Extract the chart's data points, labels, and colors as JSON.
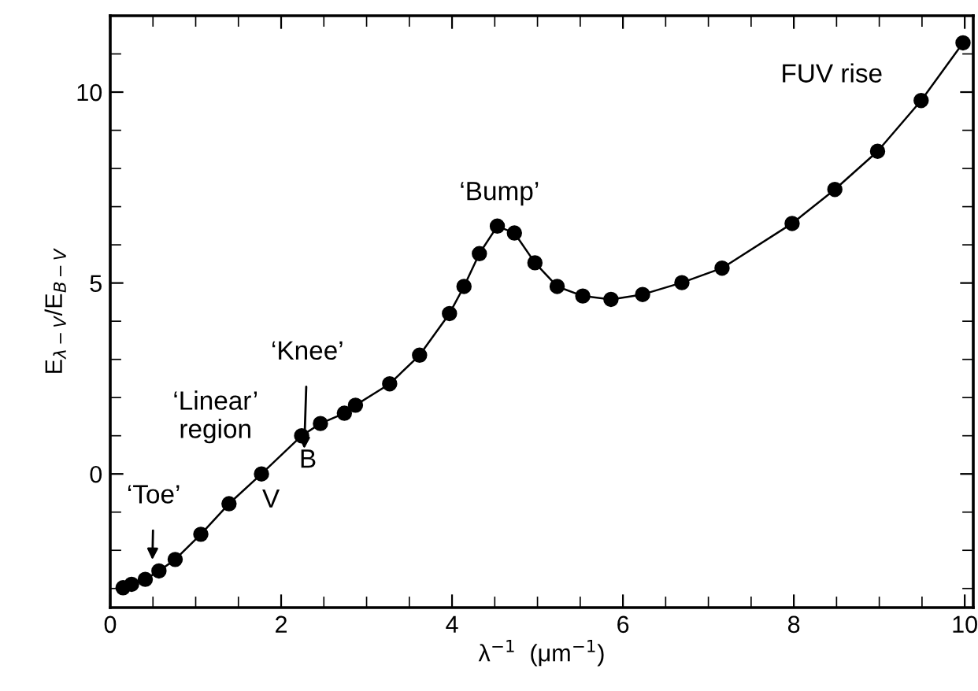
{
  "chart_data": {
    "type": "line",
    "xlabel": "λ$^{−1}$  (μm$^{−1}$)",
    "ylabel": "E$_{λ−V}$/E$_{B−V}$",
    "x": [
      0.15,
      0.25,
      0.41,
      0.57,
      0.76,
      1.06,
      1.39,
      1.77,
      2.24,
      2.46,
      2.74,
      2.87,
      3.27,
      3.62,
      3.97,
      4.14,
      4.32,
      4.53,
      4.73,
      4.97,
      5.23,
      5.53,
      5.86,
      6.23,
      6.69,
      7.16,
      7.98,
      8.48,
      8.98,
      9.49,
      9.98
    ],
    "series": [
      {
        "color": "#000000",
        "values": [
          -2.98,
          -2.89,
          -2.76,
          -2.54,
          -2.24,
          -1.58,
          -0.78,
          0.0,
          1.0,
          1.32,
          1.59,
          1.8,
          2.36,
          3.11,
          4.2,
          4.91,
          5.77,
          6.49,
          6.31,
          5.53,
          4.91,
          4.66,
          4.57,
          4.7,
          5.01,
          5.39,
          6.56,
          7.45,
          8.45,
          9.78,
          11.29
        ]
      }
    ],
    "marker": "circle",
    "line_style": "solid",
    "grid": false,
    "xlim": [
      0,
      10.1
    ],
    "ylim": [
      -3.5,
      12
    ],
    "xticks": [
      0,
      {
        "value": 0.5,
        "label": null
      },
      {
        "value": 1,
        "label": null
      },
      {
        "value": 1.5,
        "label": null
      },
      2,
      {
        "value": 2.5,
        "label": null
      },
      {
        "value": 3,
        "label": null
      },
      {
        "value": 3.5,
        "label": null
      },
      4,
      {
        "value": 4.5,
        "label": null
      },
      {
        "value": 5,
        "label": null
      },
      {
        "value": 5.5,
        "label": null
      },
      6,
      {
        "value": 6.5,
        "label": null
      },
      {
        "value": 7,
        "label": null
      },
      {
        "value": 7.5,
        "label": null
      },
      8,
      {
        "value": 8.5,
        "label": null
      },
      {
        "value": 9,
        "label": null
      },
      {
        "value": 9.5,
        "label": null
      },
      10
    ],
    "yticks": [
      {
        "value": -3,
        "label": null
      },
      {
        "value": -2,
        "label": null
      },
      {
        "value": -1,
        "label": null
      },
      0,
      {
        "value": 1,
        "label": null
      },
      {
        "value": 2,
        "label": null
      },
      {
        "value": 3,
        "label": null
      },
      {
        "value": 4,
        "label": null
      },
      5,
      {
        "value": 6,
        "label": null
      },
      {
        "value": 7,
        "label": null
      },
      {
        "value": 8,
        "label": null
      },
      {
        "value": 9,
        "label": null
      },
      10,
      {
        "value": 11,
        "label": null
      }
    ],
    "annotations": [
      {
        "text": "‘Toe’",
        "x": 0.49,
        "y": -2.65
      },
      "‘Linear’\nregion",
      {
        "text": "V",
        "x": 1.77,
        "y": 0.0
      },
      {
        "text": "‘Knee’",
        "x": 2.27,
        "y": 0.66
      },
      {
        "text": "B",
        "x": 2.24,
        "y": 1.0
      },
      "‘Bump’",
      "FUV rise"
    ]
  }
}
